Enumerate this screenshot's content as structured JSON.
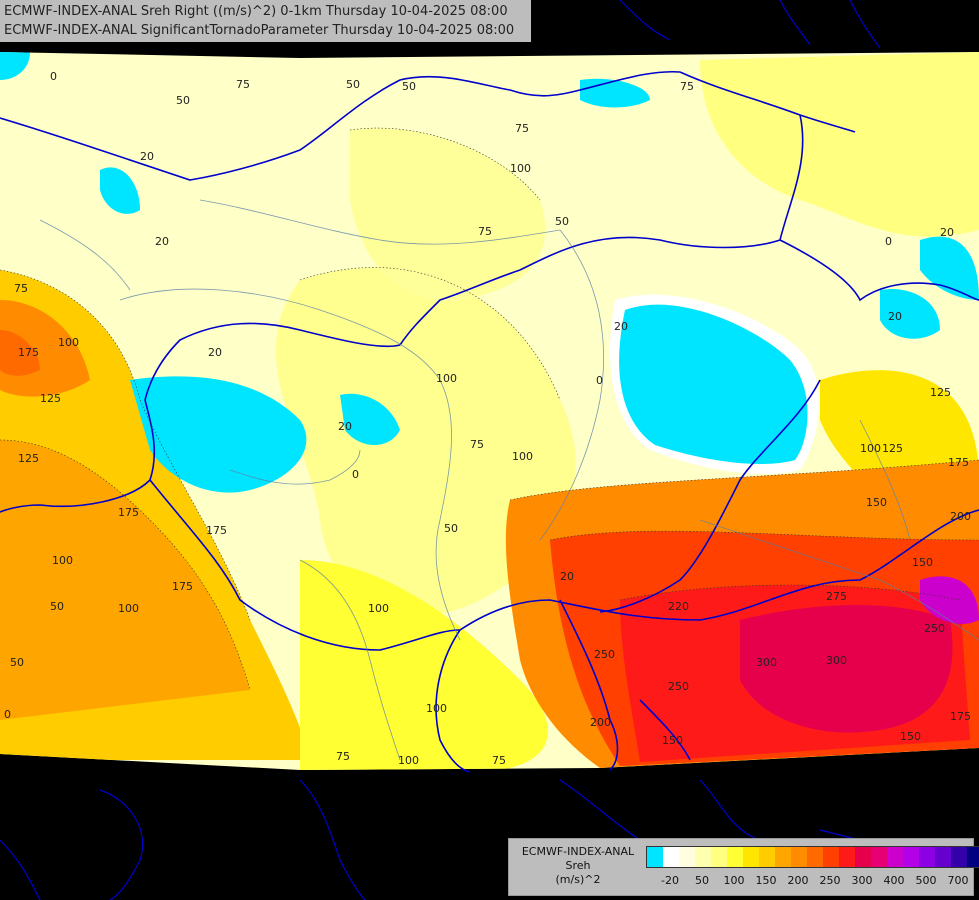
{
  "title": {
    "line1": "ECMWF-INDEX-ANAL Sreh Right ((m/s)^2) 0-1km Thursday 10-04-2025 08:00",
    "line2": "ECMWF-INDEX-ANAL SignificantTornadoParameter Thursday 10-04-2025 08:00"
  },
  "legend": {
    "model": "ECMWF-INDEX-ANAL",
    "variable": "Sreh",
    "unit": "(m/s)^2",
    "colors": [
      "#00e5ff",
      "#ffffff",
      "#ffffe0",
      "#ffffb0",
      "#ffff80",
      "#ffff33",
      "#ffe600",
      "#ffcc00",
      "#ffa500",
      "#ff8c00",
      "#ff6a00",
      "#ff4000",
      "#ff1a1a",
      "#e6004c",
      "#e60073",
      "#cc00cc",
      "#b300e6",
      "#8c00e6",
      "#6600cc",
      "#3300aa",
      "#000080"
    ],
    "ticks": [
      "-20",
      "50",
      "100",
      "150",
      "200",
      "250",
      "300",
      "400",
      "500",
      "700"
    ]
  },
  "contour_labels": [
    "0",
    "50",
    "75",
    "50",
    "20",
    "50",
    "75",
    "20",
    "75",
    "100",
    "50",
    "75",
    "0",
    "20",
    "20",
    "75",
    "175",
    "100",
    "125",
    "20",
    "100",
    "0",
    "20",
    "75",
    "100",
    "125",
    "175",
    "125",
    "175",
    "150",
    "200",
    "175",
    "150",
    "50",
    "100",
    "20",
    "0",
    "50",
    "100",
    "175",
    "100",
    "125",
    "50",
    "20",
    "100",
    "220",
    "250",
    "250",
    "275",
    "300",
    "300",
    "150",
    "175",
    "250",
    "200",
    "75",
    "100",
    "75",
    "150",
    "100",
    "0"
  ],
  "colors": {
    "background": "#000000",
    "border": "#0000cc",
    "rivers": "#5a7fa8",
    "panel": "#bdbdbd"
  }
}
